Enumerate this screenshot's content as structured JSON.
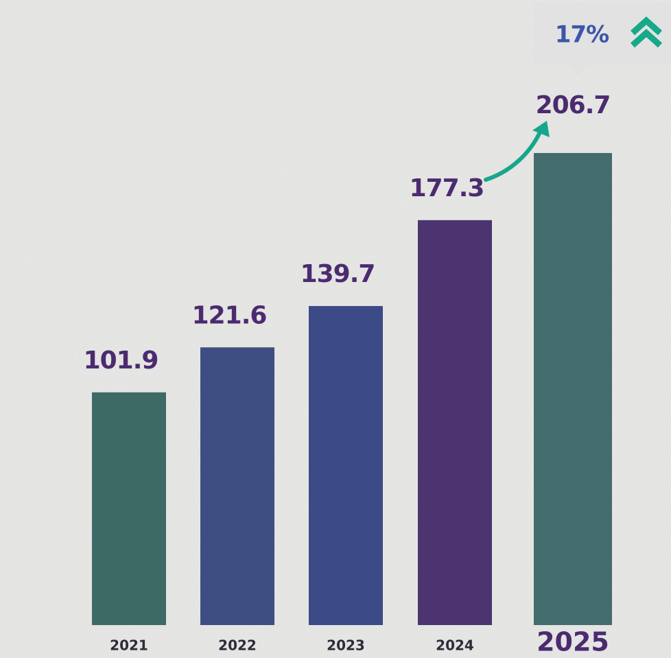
{
  "chart_data": {
    "type": "bar",
    "categories": [
      "2021",
      "2022",
      "2023",
      "2024",
      "2025"
    ],
    "values": [
      101.9,
      121.6,
      139.7,
      177.3,
      206.7
    ],
    "colors": [
      "#3e6a66",
      "#3f4e82",
      "#3c4a88",
      "#4b346f",
      "#436d6c"
    ],
    "annotation": "17%"
  }
}
